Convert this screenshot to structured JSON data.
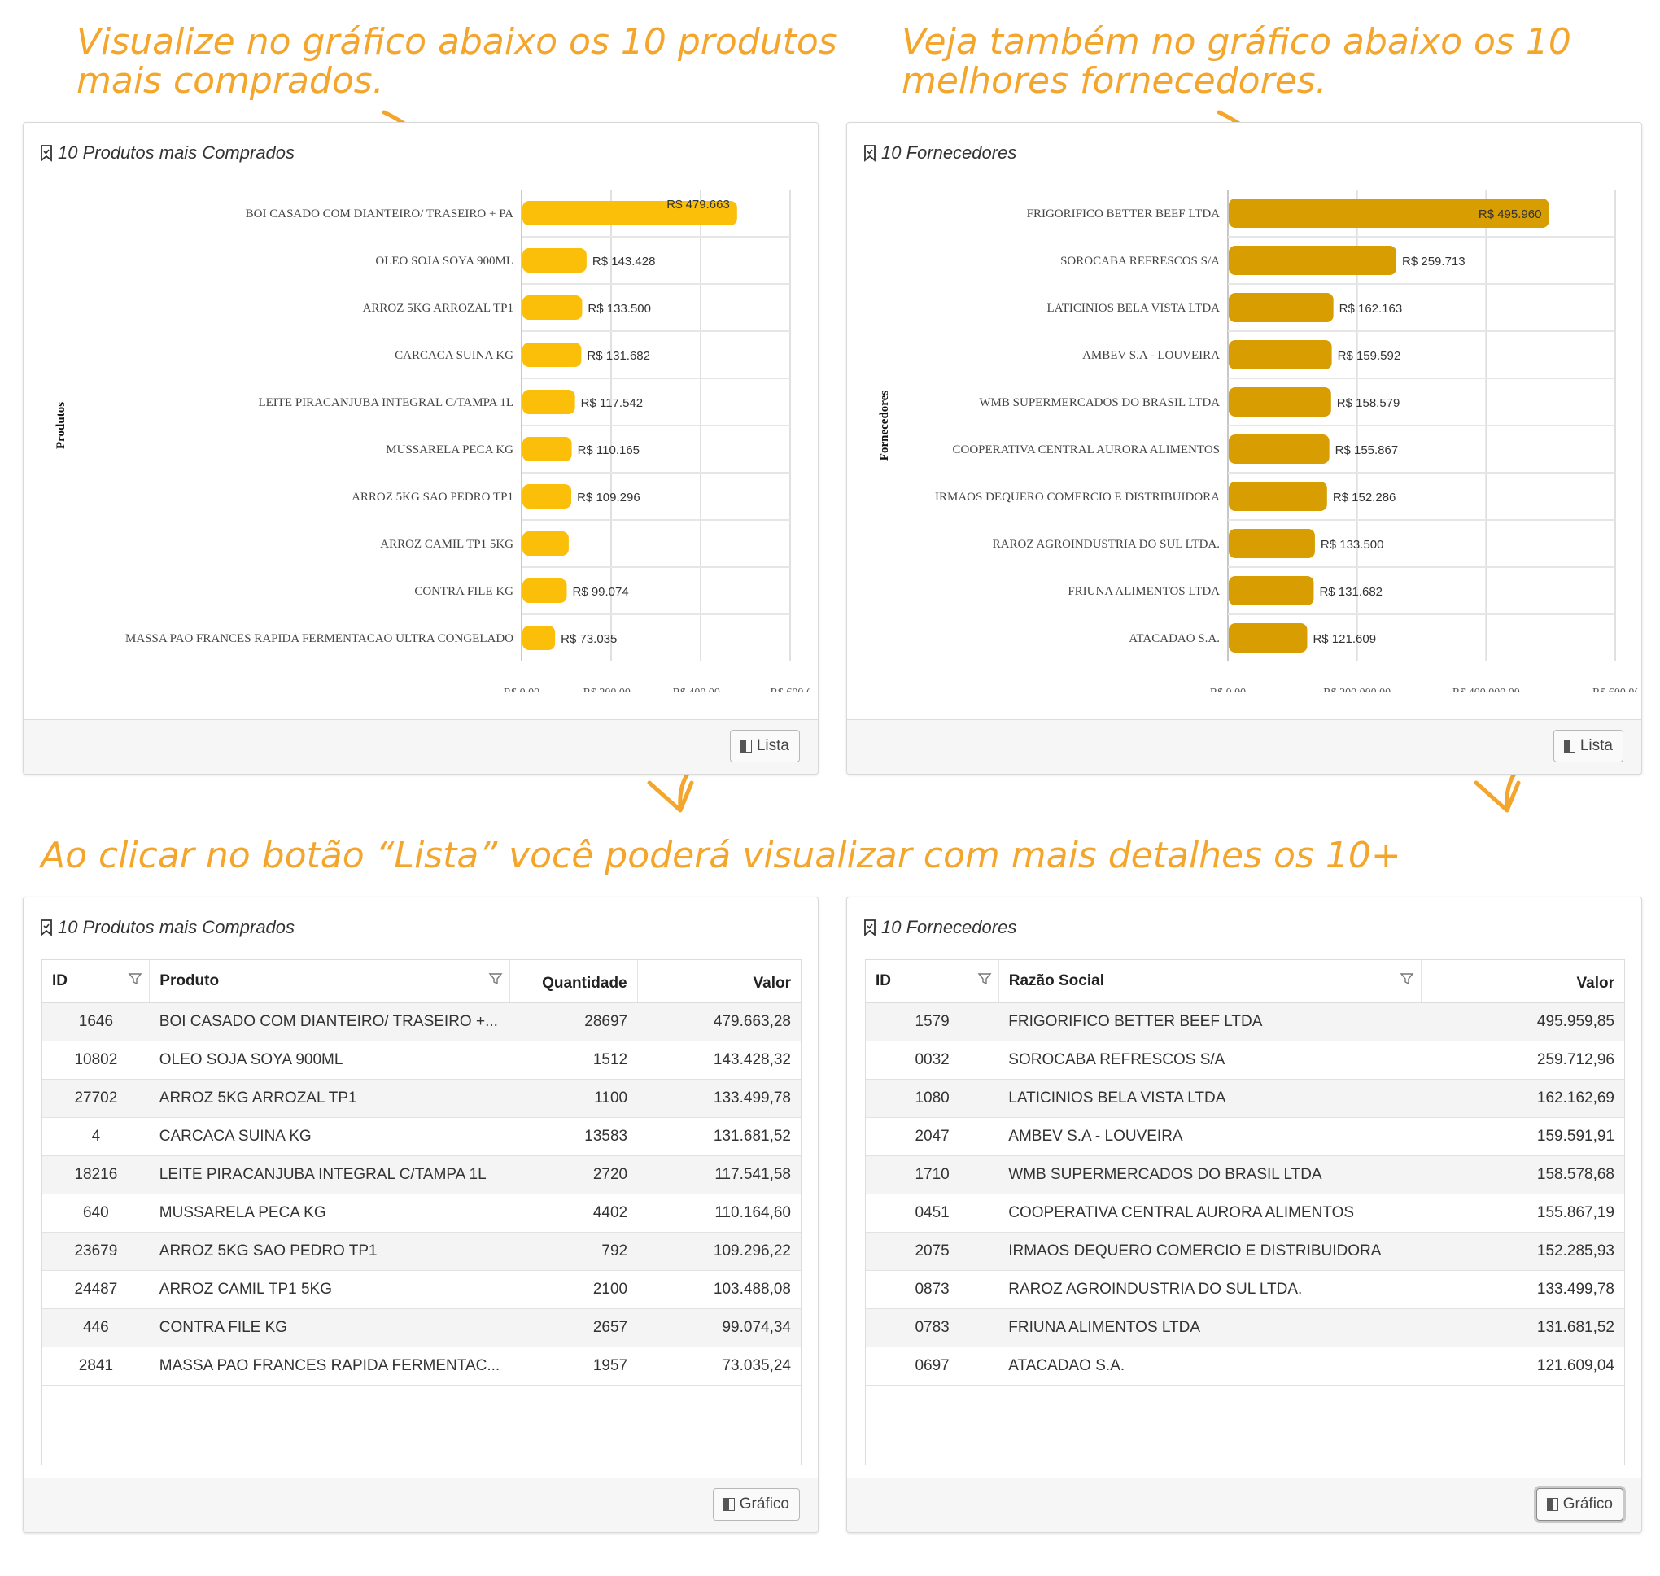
{
  "callouts": {
    "top_left_line1": "Visualize no gráfico abaixo os 10 produtos",
    "top_left_line2": "mais comprados.",
    "top_right_line1": "Veja também no gráfico abaixo os 10",
    "top_right_line2": "melhores fornecedores.",
    "middle": "Ao clicar no botão “Lista” você poderá visualizar com mais detalhes os 10+"
  },
  "colors": {
    "accent": "#f4a52c",
    "bar_products": "#fbbf0a",
    "bar_suppliers": "#d79d01"
  },
  "products_chart": {
    "title": "10 Produtos mais Comprados",
    "button_label": "Lista",
    "icon": "bookmark-icon"
  },
  "suppliers_chart": {
    "title": "10 Fornecedores",
    "button_label": "Lista",
    "icon": "bookmark-icon"
  },
  "chart_data": [
    {
      "type": "bar",
      "orientation": "horizontal",
      "ylabel": "Produtos",
      "xlabel": "",
      "categories": [
        "BOI CASADO COM DIANTEIRO/ TRASEIRO + PA",
        "OLEO SOJA SOYA 900ML",
        "ARROZ 5KG ARROZAL TP1",
        "CARCACA SUINA KG",
        "LEITE PIRACANJUBA INTEGRAL C/TAMPA 1L",
        "MUSSARELA PECA KG",
        "ARROZ 5KG SAO PEDRO TP1",
        "ARROZ CAMIL TP1 5KG",
        "CONTRA FILE KG",
        "MASSA PAO FRANCES RAPIDA FERMENTACAO ULTRA CONGELADO"
      ],
      "values": [
        479663,
        143428,
        133500,
        131682,
        117542,
        110165,
        109296,
        103488,
        99074,
        73035
      ],
      "data_labels": [
        "R$ 479.663",
        "R$ 143.428",
        "R$ 133.500",
        "R$ 131.682",
        "R$ 117.542",
        "R$ 110.165",
        "R$ 109.296",
        "",
        "R$ 99.074",
        "R$ 73.035"
      ],
      "xticks": [
        "R$ 0,00",
        "R$ 200.00...",
        "R$ 400.00...",
        "R$ 600.("
      ],
      "xtick_values": [
        0,
        200000,
        400000,
        600000
      ],
      "xlim": [
        0,
        600000
      ],
      "grid": true
    },
    {
      "type": "bar",
      "orientation": "horizontal",
      "ylabel": "Fornecedores",
      "xlabel": "",
      "categories": [
        "FRIGORIFICO BETTER BEEF LTDA",
        "SOROCABA REFRESCOS S/A",
        "LATICINIOS BELA VISTA LTDA",
        "AMBEV S.A - LOUVEIRA",
        "WMB SUPERMERCADOS DO BRASIL LTDA",
        "COOPERATIVA CENTRAL AURORA ALIMENTOS",
        "IRMAOS DEQUERO COMERCIO E DISTRIBUIDORA",
        "RAROZ AGROINDUSTRIA DO SUL LTDA.",
        "FRIUNA ALIMENTOS LTDA",
        "ATACADAO S.A."
      ],
      "values": [
        495960,
        259713,
        162163,
        159592,
        158579,
        155867,
        152286,
        133500,
        131682,
        121609
      ],
      "data_labels": [
        "R$ 495.960",
        "R$ 259.713",
        "R$ 162.163",
        "R$ 159.592",
        "R$ 158.579",
        "R$ 155.867",
        "R$ 152.286",
        "R$ 133.500",
        "R$ 131.682",
        "R$ 121.609"
      ],
      "xticks": [
        "R$ 0,00",
        "R$ 200.000,00",
        "R$ 400.000,00",
        "R$ 600.0("
      ],
      "xtick_values": [
        0,
        200000,
        400000,
        600000
      ],
      "xlim": [
        0,
        600000
      ],
      "grid": true
    }
  ],
  "products_table": {
    "title": "10 Produtos mais Comprados",
    "button_label": "Gráfico",
    "headers": {
      "id": "ID",
      "produto": "Produto",
      "quantidade": "Quantidade",
      "valor": "Valor"
    },
    "rows": [
      {
        "id": "1646",
        "produto": "BOI CASADO COM DIANTEIRO/ TRASEIRO +...",
        "quantidade": "28697",
        "valor": "479.663,28"
      },
      {
        "id": "10802",
        "produto": "OLEO SOJA SOYA 900ML",
        "quantidade": "1512",
        "valor": "143.428,32"
      },
      {
        "id": "27702",
        "produto": "ARROZ 5KG ARROZAL TP1",
        "quantidade": "1100",
        "valor": "133.499,78"
      },
      {
        "id": "4",
        "produto": "CARCACA SUINA KG",
        "quantidade": "13583",
        "valor": "131.681,52"
      },
      {
        "id": "18216",
        "produto": "LEITE PIRACANJUBA INTEGRAL C/TAMPA 1L",
        "quantidade": "2720",
        "valor": "117.541,58"
      },
      {
        "id": "640",
        "produto": "MUSSARELA PECA KG",
        "quantidade": "4402",
        "valor": "110.164,60"
      },
      {
        "id": "23679",
        "produto": "ARROZ 5KG SAO PEDRO TP1",
        "quantidade": "792",
        "valor": "109.296,22"
      },
      {
        "id": "24487",
        "produto": "ARROZ CAMIL TP1 5KG",
        "quantidade": "2100",
        "valor": "103.488,08"
      },
      {
        "id": "446",
        "produto": "CONTRA FILE KG",
        "quantidade": "2657",
        "valor": "99.074,34"
      },
      {
        "id": "2841",
        "produto": "MASSA PAO FRANCES RAPIDA FERMENTAC...",
        "quantidade": "1957",
        "valor": "73.035,24"
      }
    ]
  },
  "suppliers_table": {
    "title": "10 Fornecedores",
    "button_label": "Gráfico",
    "headers": {
      "id": "ID",
      "razao": "Razão Social",
      "valor": "Valor"
    },
    "rows": [
      {
        "id": "1579",
        "razao": "FRIGORIFICO BETTER BEEF LTDA",
        "valor": "495.959,85"
      },
      {
        "id": "0032",
        "razao": "SOROCABA REFRESCOS S/A",
        "valor": "259.712,96"
      },
      {
        "id": "1080",
        "razao": "LATICINIOS BELA VISTA LTDA",
        "valor": "162.162,69"
      },
      {
        "id": "2047",
        "razao": "AMBEV S.A - LOUVEIRA",
        "valor": "159.591,91"
      },
      {
        "id": "1710",
        "razao": "WMB SUPERMERCADOS DO BRASIL LTDA",
        "valor": "158.578,68"
      },
      {
        "id": "0451",
        "razao": "COOPERATIVA CENTRAL AURORA ALIMENTOS",
        "valor": "155.867,19"
      },
      {
        "id": "2075",
        "razao": "IRMAOS DEQUERO COMERCIO E DISTRIBUIDORA",
        "valor": "152.285,93"
      },
      {
        "id": "0873",
        "razao": "RAROZ AGROINDUSTRIA DO SUL LTDA.",
        "valor": "133.499,78"
      },
      {
        "id": "0783",
        "razao": "FRIUNA ALIMENTOS LTDA",
        "valor": "131.681,52"
      },
      {
        "id": "0697",
        "razao": "ATACADAO S.A.",
        "valor": "121.609,04"
      }
    ]
  }
}
